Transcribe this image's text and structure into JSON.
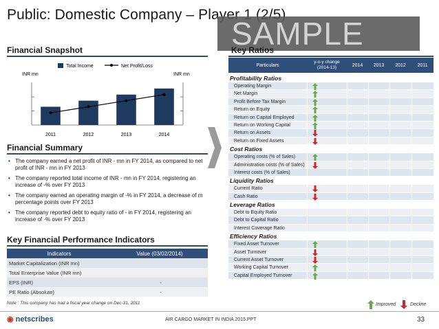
{
  "title": "Public: Domestic Company – Player 1 (2/5)",
  "watermark": "SAMPLE",
  "snapshot": {
    "heading": "Financial Snapshot",
    "left_axis": "INR mn",
    "right_axis": "INR mn",
    "legend_income": "Total Income",
    "legend_profit": "Net Profit/Loss"
  },
  "chart_data": {
    "type": "bar",
    "categories": [
      "2011",
      "2012",
      "2013",
      "2014"
    ],
    "series": [
      {
        "name": "Total Income",
        "kind": "bar",
        "values": [
          30,
          40,
          50,
          60
        ],
        "color": "#1f3a5f"
      },
      {
        "name": "Net Profit/Loss",
        "kind": "line",
        "values": [
          20,
          30,
          40,
          50
        ],
        "color": "#000000"
      }
    ],
    "ylabel_left": "INR mn",
    "ylabel_right": "INR mn",
    "ylim": [
      0,
      70
    ],
    "legend": "top"
  },
  "summary": {
    "heading": "Financial Summary",
    "bullets": [
      "The company earned a net profit of INR - mn in FY 2014, as compared to net profit of INR - mn in FY 2013",
      "The company reported total income of INR - mn in FY 2014, registering an increase of -% over FY 2013",
      "The company earned an operating margin of -% in FY 2014, a decrease of m percentage points over FY 2013",
      "The company reported debt to equity ratio of - in FY 2014, registering an increase of -% over FY 2013"
    ]
  },
  "kfpi": {
    "heading": "Key Financial Performance Indicators",
    "col1": "Indicators",
    "col2": "Value (03/02/2014)",
    "rows": [
      {
        "label": "Market Capitalization (INR mn)",
        "value": ""
      },
      {
        "label": "Total Enterprise Value (INR mn)",
        "value": ""
      },
      {
        "label": "EPS (INR)",
        "value": "-"
      },
      {
        "label": "PE Ratio (Absolute)",
        "value": "-"
      }
    ]
  },
  "note": "Note : This company has had a fiscal year change on Dec-31, 2011",
  "ratios": {
    "heading": "Key Ratios",
    "col_particulars": "Particulars",
    "col_change": "y-o-y change (2014-13)",
    "years": [
      "2014",
      "2013",
      "2012",
      "2011"
    ],
    "groups": [
      {
        "name": "Profitability Ratios",
        "items": [
          {
            "label": "Operating Margin",
            "trend": "up"
          },
          {
            "label": "Net Margin",
            "trend": "up"
          },
          {
            "label": "Profit Before Tax Margin",
            "trend": "up"
          },
          {
            "label": "Return on Equity",
            "trend": "up"
          },
          {
            "label": "Return on Capital Employed",
            "trend": "up"
          },
          {
            "label": "Return on Working Capital",
            "trend": "up"
          },
          {
            "label": "Return on Assets",
            "trend": "down"
          },
          {
            "label": "Return on Fixed Assets",
            "trend": "down"
          }
        ]
      },
      {
        "name": "Cost Ratios",
        "items": [
          {
            "label": "Operating costs (% of Sales)",
            "trend": "up"
          },
          {
            "label": "Administration costs (% of Sales)",
            "trend": "down"
          },
          {
            "label": "Interest costs (% of Sales)",
            "trend": "none"
          }
        ]
      },
      {
        "name": "Liquidity Ratios",
        "items": [
          {
            "label": "Current Ratio",
            "trend": "down"
          },
          {
            "label": "Cash Ratio",
            "trend": "down"
          }
        ]
      },
      {
        "name": "Leverage Ratios",
        "items": [
          {
            "label": "Debt to Equity Ratio",
            "trend": "none"
          },
          {
            "label": "Debt to Capital Ratio",
            "trend": "none"
          },
          {
            "label": "Interest Coverage Ratio",
            "trend": "none"
          }
        ]
      },
      {
        "name": "Efficiency Ratios",
        "items": [
          {
            "label": "Fixed Asset Turnover",
            "trend": "up"
          },
          {
            "label": "Asset Turnover",
            "trend": "down"
          },
          {
            "label": "Current Asset Turnover",
            "trend": "down"
          },
          {
            "label": "Working Capital Turnover",
            "trend": "up"
          },
          {
            "label": "Capital Employed Turnover",
            "trend": "up"
          }
        ]
      }
    ],
    "legend_improved": "Improved",
    "legend_decline": "Decline"
  },
  "footer": {
    "logo": "netscribes",
    "center": "AIR CARGO MARKET IN INDIA 2015.PPT",
    "page": "33"
  },
  "colors": {
    "accent": "#2f4f7a",
    "up": "#6aa84f",
    "down": "#cc2a2a"
  }
}
